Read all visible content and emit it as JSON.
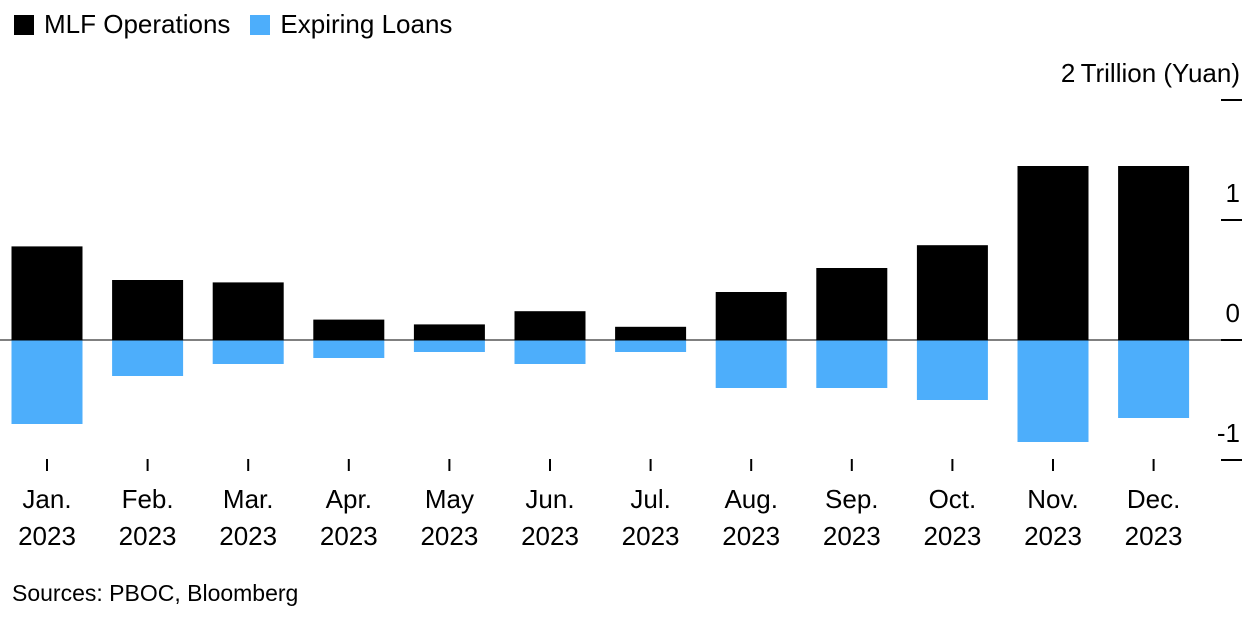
{
  "chart_data": {
    "type": "bar",
    "legend_position": "top-left",
    "unit_label": "Trillion (Yuan)",
    "categories": [
      [
        "Jan.",
        "2023"
      ],
      [
        "Feb.",
        "2023"
      ],
      [
        "Mar.",
        "2023"
      ],
      [
        "Apr.",
        "2023"
      ],
      [
        "May",
        "2023"
      ],
      [
        "Jun.",
        "2023"
      ],
      [
        "Jul.",
        "2023"
      ],
      [
        "Aug.",
        "2023"
      ],
      [
        "Sep.",
        "2023"
      ],
      [
        "Oct.",
        "2023"
      ],
      [
        "Nov.",
        "2023"
      ],
      [
        "Dec.",
        "2023"
      ]
    ],
    "series": [
      {
        "name": "MLF Operations",
        "color": "#000000",
        "values": [
          0.78,
          0.5,
          0.48,
          0.17,
          0.13,
          0.24,
          0.11,
          0.4,
          0.6,
          0.79,
          1.45,
          1.45
        ]
      },
      {
        "name": "Expiring Loans",
        "color": "#4daefb",
        "values": [
          -0.7,
          -0.3,
          -0.2,
          -0.15,
          -0.1,
          -0.2,
          -0.1,
          -0.4,
          -0.4,
          -0.5,
          -0.85,
          -0.65
        ]
      }
    ],
    "ylim": [
      -1,
      2
    ],
    "yticks": [
      -1,
      0,
      1,
      2
    ],
    "ytick_labels": [
      "-1",
      "0",
      "1",
      "2"
    ],
    "grid": false
  },
  "legend": {
    "mlf_label": "MLF Operations",
    "expiring_label": "Expiring Loans"
  },
  "source": "Sources: PBOC, Bloomberg"
}
